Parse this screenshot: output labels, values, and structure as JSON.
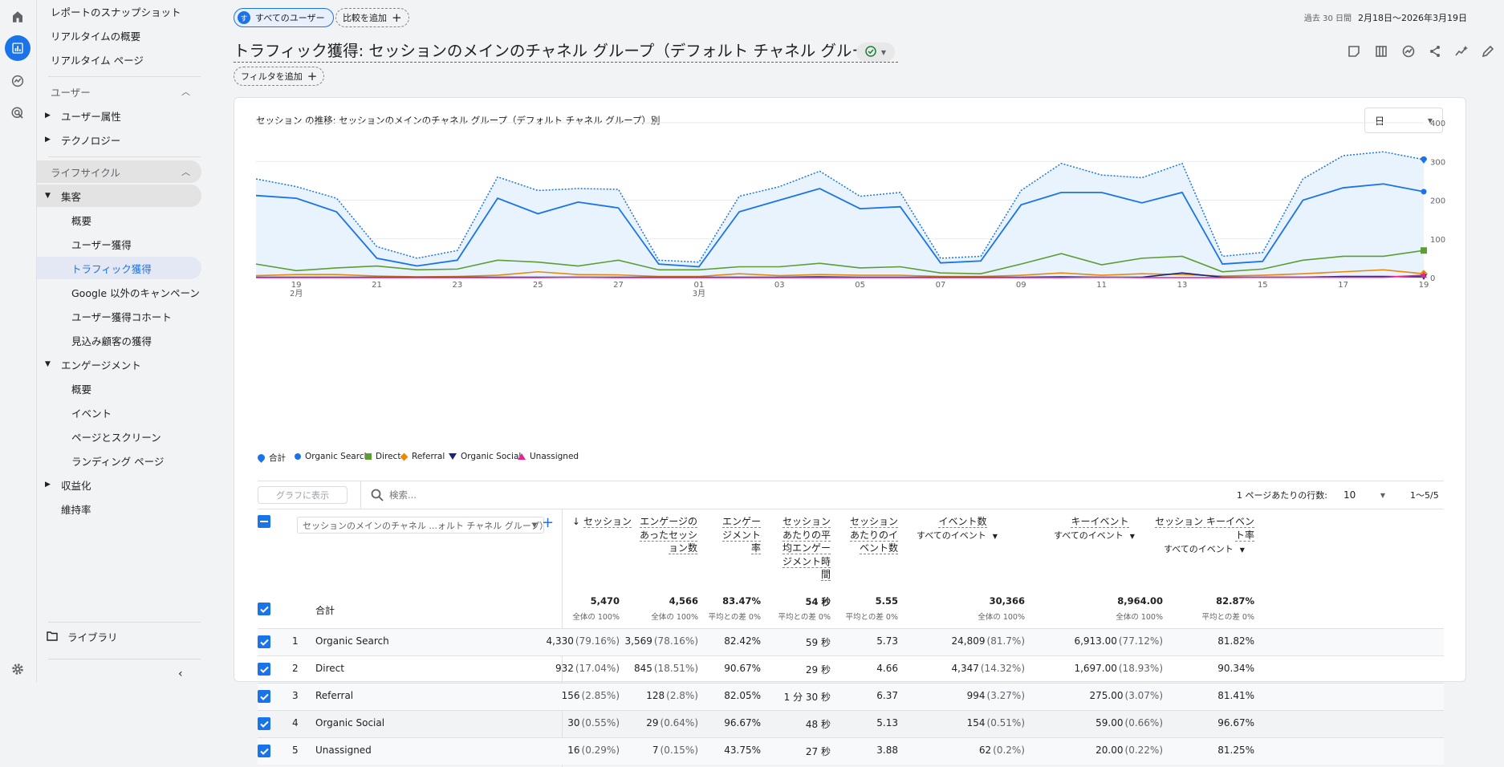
{
  "sidebar": {
    "top_items": [
      "レポートのスナップショット",
      "リアルタイムの概要",
      "リアルタイム ページ"
    ],
    "user_section": "ユーザー",
    "user_items": [
      "ユーザー属性",
      "テクノロジー"
    ],
    "lifecycle_section": "ライフサイクル",
    "acquisition": "集客",
    "acquisition_items": [
      "概要",
      "ユーザー獲得",
      "トラフィック獲得",
      "Google 以外のキャンペーン",
      "ユーザー獲得コホート",
      "見込み顧客の獲得"
    ],
    "engagement": "エンゲージメント",
    "engagement_items": [
      "概要",
      "イベント",
      "ページとスクリーン",
      "ランディング ページ"
    ],
    "monetization": "収益化",
    "retention": "維持率",
    "library": "ライブラリ"
  },
  "header": {
    "segment_avatar": "す",
    "segment_chip": "すべてのユーザー",
    "compare_chip": "比較を追加",
    "date_prefix": "過去 30 日間",
    "date_range": "2月18日〜2026年3月19日",
    "title": "トラフィック獲得: セッションのメインのチャネル グループ（デフォルト チャネル グループ）",
    "filter_chip": "フィルタを追加"
  },
  "chart": {
    "title": "セッション の推移: セッションのメインのチャネル グループ（デフォルト チャネル グループ）別",
    "granularity": "日"
  },
  "chart_data": {
    "type": "line",
    "x": [
      "2/18",
      "2/19",
      "2/20",
      "2/21",
      "2/22",
      "2/23",
      "2/24",
      "2/25",
      "2/26",
      "2/27",
      "2/28",
      "3/1",
      "3/2",
      "3/3",
      "3/4",
      "3/5",
      "3/6",
      "3/7",
      "3/8",
      "3/9",
      "3/10",
      "3/11",
      "3/12",
      "3/13",
      "3/14",
      "3/15",
      "3/16",
      "3/17",
      "3/18",
      "3/19"
    ],
    "x_tick_labels": [
      "19",
      "21",
      "23",
      "25",
      "27",
      "01",
      "03",
      "05",
      "07",
      "09",
      "11",
      "13",
      "15",
      "17",
      "19"
    ],
    "x_tick_sublabels": {
      "19": "2月",
      "01": "3月"
    },
    "ylim": [
      0,
      400
    ],
    "y_ticks": [
      "0",
      "100",
      "200",
      "300",
      "400"
    ],
    "legend_position": "bottom-left",
    "series": [
      {
        "name": "合計",
        "color": "#1a73e8",
        "style": "dotted-area",
        "values": [
          255,
          235,
          205,
          80,
          50,
          70,
          260,
          225,
          230,
          228,
          45,
          40,
          210,
          235,
          275,
          210,
          220,
          50,
          55,
          225,
          295,
          265,
          258,
          295,
          55,
          65,
          255,
          315,
          325,
          305
        ]
      },
      {
        "name": "Organic Search",
        "color": "#1a73e8",
        "values": [
          212,
          205,
          170,
          50,
          30,
          45,
          205,
          165,
          195,
          180,
          35,
          28,
          170,
          200,
          230,
          178,
          183,
          38,
          43,
          188,
          220,
          220,
          193,
          220,
          35,
          42,
          200,
          232,
          242,
          222
        ]
      },
      {
        "name": "Direct",
        "color": "#5c9e31",
        "values": [
          35,
          18,
          25,
          30,
          20,
          22,
          45,
          40,
          30,
          45,
          20,
          20,
          28,
          28,
          37,
          25,
          28,
          12,
          10,
          35,
          62,
          33,
          50,
          55,
          15,
          22,
          45,
          55,
          55,
          70
        ]
      },
      {
        "name": "Referral",
        "color": "#e8890c",
        "values": [
          5,
          8,
          8,
          4,
          2,
          3,
          6,
          15,
          8,
          7,
          3,
          3,
          10,
          5,
          8,
          6,
          6,
          3,
          3,
          6,
          12,
          6,
          10,
          8,
          4,
          6,
          10,
          15,
          20,
          10
        ]
      },
      {
        "name": "Organic Social",
        "color": "#1a237e",
        "values": [
          1,
          1,
          1,
          1,
          1,
          1,
          1,
          1,
          1,
          1,
          1,
          1,
          1,
          1,
          2,
          1,
          1,
          1,
          1,
          1,
          2,
          1,
          1,
          12,
          1,
          1,
          1,
          3,
          3,
          2
        ]
      },
      {
        "name": "Unassigned",
        "color": "#e52592",
        "values": [
          0,
          0,
          0,
          0,
          0,
          0,
          0,
          0,
          1,
          0,
          0,
          0,
          0,
          0,
          0,
          0,
          0,
          0,
          0,
          0,
          0,
          1,
          0,
          0,
          0,
          1,
          1,
          1,
          1,
          6
        ]
      }
    ]
  },
  "table": {
    "plot_button": "グラフに表示",
    "search_placeholder": "検索...",
    "rows_per_page_label": "1 ページあたりの行数:",
    "rows_per_page_value": "10",
    "range": "1〜5/5",
    "dimension": "セッションのメインのチャネル ...ォルト チャネル グループ）",
    "columns": [
      {
        "label": "セッション",
        "sub": ""
      },
      {
        "label": "エンゲージのあったセッション数",
        "sub": ""
      },
      {
        "label": "エンゲージメント率",
        "sub": ""
      },
      {
        "label": "セッションあたりの平均エンゲージメント時間",
        "sub": ""
      },
      {
        "label": "セッションあたりのイベント数",
        "sub": ""
      },
      {
        "label": "イベント数",
        "sub": "すべてのイベント"
      },
      {
        "label": "キーイベント",
        "sub": "すべてのイベント"
      },
      {
        "label": "セッション キーイベント率",
        "sub": "すべてのイベント"
      }
    ],
    "total_label": "合計",
    "totals": [
      {
        "value": "5,470",
        "note": "全体の 100%"
      },
      {
        "value": "4,566",
        "note": "全体の 100%"
      },
      {
        "value": "83.47%",
        "note": "平均との差 0%"
      },
      {
        "value": "54 秒",
        "note": "平均との差 0%"
      },
      {
        "value": "5.55",
        "note": "平均との差 0%"
      },
      {
        "value": "30,366",
        "note": "全体の 100%"
      },
      {
        "value": "8,964.00",
        "note": "全体の 100%"
      },
      {
        "value": "82.87%",
        "note": "平均との差 0%"
      }
    ],
    "rows": [
      {
        "index": "1",
        "name": "Organic Search",
        "cells": [
          [
            "4,330",
            "(79.16%)"
          ],
          [
            "3,569",
            "(78.16%)"
          ],
          [
            "82.42%",
            ""
          ],
          [
            "59 秒",
            ""
          ],
          [
            "5.73",
            ""
          ],
          [
            "24,809",
            "(81.7%)"
          ],
          [
            "6,913.00",
            "(77.12%)"
          ],
          [
            "81.82%",
            ""
          ]
        ]
      },
      {
        "index": "2",
        "name": "Direct",
        "cells": [
          [
            "932",
            "(17.04%)"
          ],
          [
            "845",
            "(18.51%)"
          ],
          [
            "90.67%",
            ""
          ],
          [
            "29 秒",
            ""
          ],
          [
            "4.66",
            ""
          ],
          [
            "4,347",
            "(14.32%)"
          ],
          [
            "1,697.00",
            "(18.93%)"
          ],
          [
            "90.34%",
            ""
          ]
        ]
      },
      {
        "index": "3",
        "name": "Referral",
        "cells": [
          [
            "156",
            "(2.85%)"
          ],
          [
            "128",
            "(2.8%)"
          ],
          [
            "82.05%",
            ""
          ],
          [
            "1 分 30 秒",
            ""
          ],
          [
            "6.37",
            ""
          ],
          [
            "994",
            "(3.27%)"
          ],
          [
            "275.00",
            "(3.07%)"
          ],
          [
            "81.41%",
            ""
          ]
        ]
      },
      {
        "index": "4",
        "name": "Organic Social",
        "cells": [
          [
            "30",
            "(0.55%)"
          ],
          [
            "29",
            "(0.64%)"
          ],
          [
            "96.67%",
            ""
          ],
          [
            "48 秒",
            ""
          ],
          [
            "5.13",
            ""
          ],
          [
            "154",
            "(0.51%)"
          ],
          [
            "59.00",
            "(0.66%)"
          ],
          [
            "96.67%",
            ""
          ]
        ]
      },
      {
        "index": "5",
        "name": "Unassigned",
        "cells": [
          [
            "16",
            "(0.29%)"
          ],
          [
            "7",
            "(0.15%)"
          ],
          [
            "43.75%",
            ""
          ],
          [
            "27 秒",
            ""
          ],
          [
            "3.88",
            ""
          ],
          [
            "62",
            "(0.2%)"
          ],
          [
            "20.00",
            "(0.22%)"
          ],
          [
            "81.25%",
            ""
          ]
        ]
      }
    ]
  }
}
